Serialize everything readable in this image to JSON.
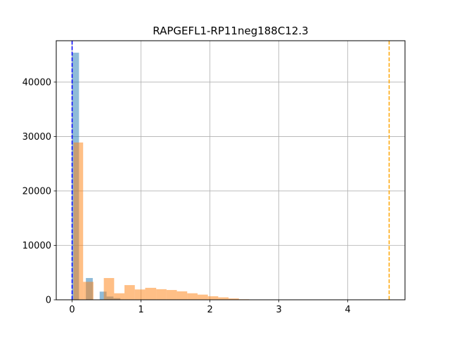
{
  "chart_data": {
    "type": "bar",
    "title": "RAPGEFL1-RP11neg188C12.3",
    "xlim": [
      -0.23,
      4.83
    ],
    "ylim": [
      0,
      47600
    ],
    "xticks": [
      0,
      1,
      2,
      3,
      4
    ],
    "xtick_labels": [
      "0",
      "1",
      "2",
      "3",
      "4"
    ],
    "yticks": [
      0,
      10000,
      20000,
      30000,
      40000
    ],
    "ytick_labels": [
      "0",
      "10000",
      "20000",
      "30000",
      "40000"
    ],
    "grid": true,
    "series": [
      {
        "color": "#1f77b4",
        "opacity": 0.5,
        "bins": [
          {
            "x0": 0.0,
            "x1": 0.1,
            "count": 45400
          },
          {
            "x0": 0.2,
            "x1": 0.3,
            "count": 4000
          },
          {
            "x0": 0.4,
            "x1": 0.5,
            "count": 1500
          },
          {
            "x0": 0.5,
            "x1": 0.6,
            "count": 600
          },
          {
            "x0": 0.6,
            "x1": 0.7,
            "count": 300
          }
        ]
      },
      {
        "color": "#ff7f0e",
        "opacity": 0.5,
        "bins": [
          {
            "x0": 0.02,
            "x1": 0.16,
            "count": 28900
          },
          {
            "x0": 0.16,
            "x1": 0.31,
            "count": 3300
          },
          {
            "x0": 0.46,
            "x1": 0.61,
            "count": 4000
          },
          {
            "x0": 0.61,
            "x1": 0.76,
            "count": 1200
          },
          {
            "x0": 0.76,
            "x1": 0.91,
            "count": 2700
          },
          {
            "x0": 0.91,
            "x1": 1.06,
            "count": 1900
          },
          {
            "x0": 1.06,
            "x1": 1.22,
            "count": 2200
          },
          {
            "x0": 1.22,
            "x1": 1.37,
            "count": 1950
          },
          {
            "x0": 1.37,
            "x1": 1.52,
            "count": 1800
          },
          {
            "x0": 1.52,
            "x1": 1.67,
            "count": 1550
          },
          {
            "x0": 1.67,
            "x1": 1.82,
            "count": 1200
          },
          {
            "x0": 1.82,
            "x1": 1.97,
            "count": 950
          },
          {
            "x0": 1.97,
            "x1": 2.12,
            "count": 650
          },
          {
            "x0": 2.12,
            "x1": 2.27,
            "count": 450
          },
          {
            "x0": 2.27,
            "x1": 2.42,
            "count": 250
          },
          {
            "x0": 2.42,
            "x1": 2.57,
            "count": 100
          },
          {
            "x0": 2.57,
            "x1": 2.72,
            "count": 40
          }
        ]
      }
    ],
    "vlines": [
      {
        "x": 0.0,
        "color": "#0000ff",
        "style": "dashed"
      },
      {
        "x": 4.6,
        "color": "#ffa500",
        "style": "dashed"
      }
    ]
  }
}
